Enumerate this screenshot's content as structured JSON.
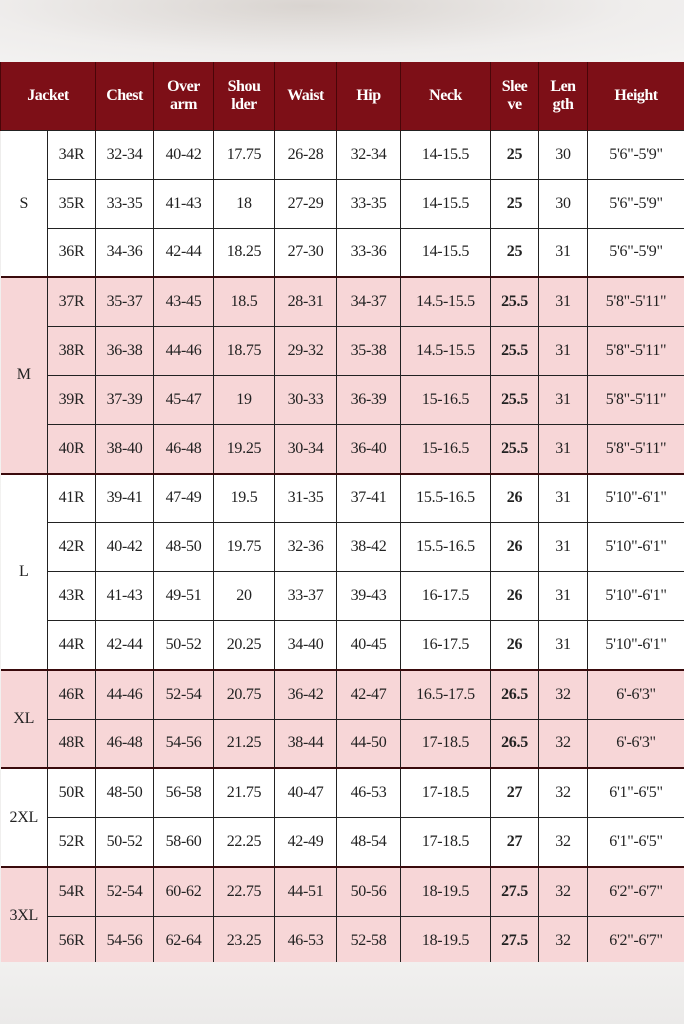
{
  "colors": {
    "header": "#7d0f17",
    "pink_row": "#f7d6d7",
    "white_row": "#ffffff"
  },
  "headers": [
    "Jacket",
    "Chest",
    "Over\narm",
    "Shou\nlder",
    "Waist",
    "Hip",
    "Neck",
    "Slee\nve",
    "Len\ngth",
    "Height"
  ],
  "groups": [
    {
      "size": "S",
      "shade": "white",
      "rows": [
        [
          "34R",
          "32-34",
          "40-42",
          "17.75",
          "26-28",
          "32-34",
          "14-15.5",
          "25",
          "30",
          "5'6\"-5'9\""
        ],
        [
          "35R",
          "33-35",
          "41-43",
          "18",
          "27-29",
          "33-35",
          "14-15.5",
          "25",
          "30",
          "5'6\"-5'9\""
        ],
        [
          "36R",
          "34-36",
          "42-44",
          "18.25",
          "27-30",
          "33-36",
          "14-15.5",
          "25",
          "31",
          "5'6\"-5'9\""
        ]
      ]
    },
    {
      "size": "M",
      "shade": "pink",
      "rows": [
        [
          "37R",
          "35-37",
          "43-45",
          "18.5",
          "28-31",
          "34-37",
          "14.5-15.5",
          "25.5",
          "31",
          "5'8\"-5'11\""
        ],
        [
          "38R",
          "36-38",
          "44-46",
          "18.75",
          "29-32",
          "35-38",
          "14.5-15.5",
          "25.5",
          "31",
          "5'8\"-5'11\""
        ],
        [
          "39R",
          "37-39",
          "45-47",
          "19",
          "30-33",
          "36-39",
          "15-16.5",
          "25.5",
          "31",
          "5'8\"-5'11\""
        ],
        [
          "40R",
          "38-40",
          "46-48",
          "19.25",
          "30-34",
          "36-40",
          "15-16.5",
          "25.5",
          "31",
          "5'8\"-5'11\""
        ]
      ]
    },
    {
      "size": "L",
      "shade": "white",
      "rows": [
        [
          "41R",
          "39-41",
          "47-49",
          "19.5",
          "31-35",
          "37-41",
          "15.5-16.5",
          "26",
          "31",
          "5'10\"-6'1\""
        ],
        [
          "42R",
          "40-42",
          "48-50",
          "19.75",
          "32-36",
          "38-42",
          "15.5-16.5",
          "26",
          "31",
          "5'10\"-6'1\""
        ],
        [
          "43R",
          "41-43",
          "49-51",
          "20",
          "33-37",
          "39-43",
          "16-17.5",
          "26",
          "31",
          "5'10\"-6'1\""
        ],
        [
          "44R",
          "42-44",
          "50-52",
          "20.25",
          "34-40",
          "40-45",
          "16-17.5",
          "26",
          "31",
          "5'10\"-6'1\""
        ]
      ]
    },
    {
      "size": "XL",
      "shade": "pink",
      "rows": [
        [
          "46R",
          "44-46",
          "52-54",
          "20.75",
          "36-42",
          "42-47",
          "16.5-17.5",
          "26.5",
          "32",
          "6'-6'3\""
        ],
        [
          "48R",
          "46-48",
          "54-56",
          "21.25",
          "38-44",
          "44-50",
          "17-18.5",
          "26.5",
          "32",
          "6'-6'3\""
        ]
      ]
    },
    {
      "size": "2XL",
      "shade": "white",
      "rows": [
        [
          "50R",
          "48-50",
          "56-58",
          "21.75",
          "40-47",
          "46-53",
          "17-18.5",
          "27",
          "32",
          "6'1\"-6'5\""
        ],
        [
          "52R",
          "50-52",
          "58-60",
          "22.25",
          "42-49",
          "48-54",
          "17-18.5",
          "27",
          "32",
          "6'1\"-6'5\""
        ]
      ]
    },
    {
      "size": "3XL",
      "shade": "pink",
      "rows": [
        [
          "54R",
          "52-54",
          "60-62",
          "22.75",
          "44-51",
          "50-56",
          "18-19.5",
          "27.5",
          "32",
          "6'2\"-6'7\""
        ],
        [
          "56R",
          "54-56",
          "62-64",
          "23.25",
          "46-53",
          "52-58",
          "18-19.5",
          "27.5",
          "32",
          "6'2\"-6'7\""
        ]
      ]
    }
  ]
}
